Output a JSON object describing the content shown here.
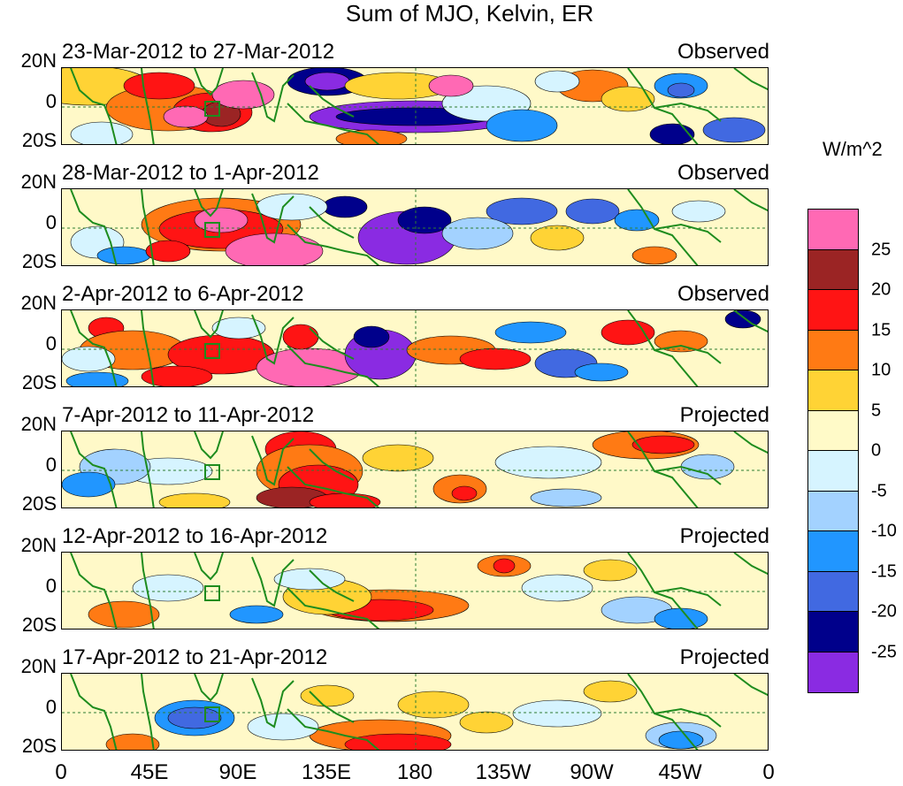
{
  "title": "Sum of MJO, Kelvin, ER",
  "latitude_labels": [
    "20N",
    "0",
    "20S"
  ],
  "longitude_labels": [
    "0",
    "45E",
    "90E",
    "135E",
    "180",
    "135W",
    "90W",
    "45W",
    "0"
  ],
  "panels": [
    {
      "date_range": "23-Mar-2012 to 27-Mar-2012",
      "status": "Observed"
    },
    {
      "date_range": "28-Mar-2012 to 1-Apr-2012",
      "status": "Observed"
    },
    {
      "date_range": "2-Apr-2012 to 6-Apr-2012",
      "status": "Observed"
    },
    {
      "date_range": "7-Apr-2012 to 11-Apr-2012",
      "status": "Projected"
    },
    {
      "date_range": "12-Apr-2012 to 16-Apr-2012",
      "status": "Projected"
    },
    {
      "date_range": "17-Apr-2012 to 21-Apr-2012",
      "status": "Projected"
    }
  ],
  "colorbar": {
    "units": "W/m^2",
    "tick_labels": [
      "25",
      "20",
      "15",
      "10",
      "5",
      "0",
      "-5",
      "-10",
      "-15",
      "-20",
      "-25"
    ],
    "colors": [
      "#ff69b4",
      "#9b2424",
      "#ff1414",
      "#ff7a14",
      "#ffd335",
      "#fffac8",
      "#d6f4ff",
      "#a3d2ff",
      "#2196ff",
      "#4169e1",
      "#00008b",
      "#8a2be2"
    ]
  },
  "style": {
    "coastline_color": "#1e8c1e",
    "reference_line_color": "#2e7d32"
  }
}
